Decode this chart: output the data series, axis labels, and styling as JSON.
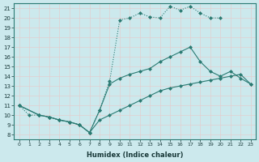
{
  "xlabel": "Humidex (Indice chaleur)",
  "bg_color": "#cce9ed",
  "grid_color": "#b0d8dc",
  "line_color": "#2a7a72",
  "xlim": [
    -0.5,
    23.5
  ],
  "ylim": [
    7.5,
    21.5
  ],
  "xticks": [
    0,
    1,
    2,
    3,
    4,
    5,
    6,
    7,
    8,
    9,
    10,
    11,
    12,
    13,
    14,
    15,
    16,
    17,
    18,
    19,
    20,
    21,
    22,
    23
  ],
  "yticks": [
    8,
    9,
    10,
    11,
    12,
    13,
    14,
    15,
    16,
    17,
    18,
    19,
    20,
    21
  ],
  "line1_x": [
    0,
    1,
    2,
    3,
    4,
    5,
    6,
    7,
    8,
    9,
    10,
    11,
    12,
    13,
    14,
    15,
    16,
    17,
    18,
    19,
    20
  ],
  "line1_y": [
    11.0,
    10.0,
    10.0,
    9.8,
    9.5,
    9.3,
    9.0,
    8.2,
    10.5,
    13.5,
    19.8,
    20.0,
    20.5,
    20.1,
    20.0,
    21.2,
    20.8,
    21.2,
    20.5,
    20.0,
    20.0
  ],
  "line2_x": [
    0,
    2,
    3,
    4,
    5,
    6,
    7,
    8,
    9,
    10,
    11,
    12,
    13,
    14,
    15,
    16,
    17,
    18,
    19,
    20,
    21,
    22,
    23
  ],
  "line2_y": [
    11.0,
    10.0,
    9.8,
    9.5,
    9.3,
    9.0,
    8.2,
    10.5,
    13.2,
    13.8,
    14.2,
    14.5,
    14.8,
    15.5,
    16.0,
    16.5,
    17.0,
    15.5,
    14.5,
    14.0,
    14.5,
    13.8,
    13.2
  ],
  "line3_x": [
    0,
    2,
    3,
    4,
    5,
    6,
    7,
    8,
    9,
    10,
    11,
    12,
    13,
    14,
    15,
    16,
    17,
    18,
    19,
    20,
    21,
    22,
    23
  ],
  "line3_y": [
    11.0,
    10.0,
    9.8,
    9.5,
    9.3,
    9.0,
    8.2,
    9.5,
    10.0,
    10.5,
    11.0,
    11.5,
    12.0,
    12.5,
    12.8,
    13.0,
    13.2,
    13.4,
    13.6,
    13.8,
    14.0,
    14.2,
    13.2
  ]
}
